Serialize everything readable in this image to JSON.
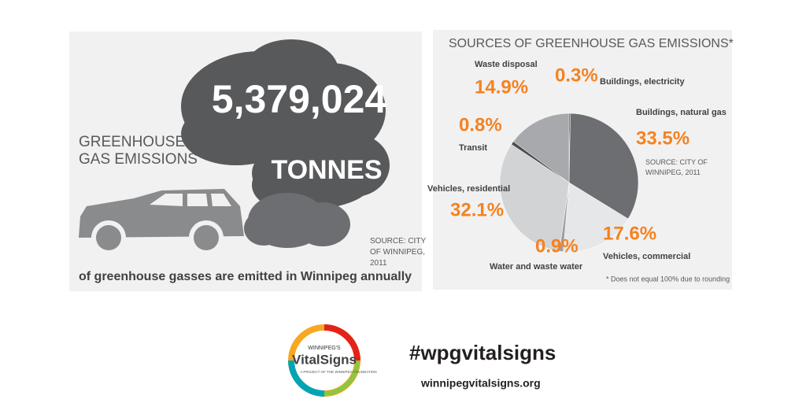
{
  "infographic": {
    "heading": "GREENHOUSE GAS EMISSIONS",
    "total": "5,379,024",
    "unit": "TONNES",
    "caption": "of greenhouse gasses are emitted in Winnipeg annually",
    "source": "SOURCE: CITY OF WINNIPEG, 2011"
  },
  "chart_data": {
    "type": "pie",
    "title": "SOURCES OF GREENHOUSE GAS EMISSIONS*",
    "categories": [
      "Buildings, electricity",
      "Buildings, natural gas",
      "Vehicles, commercial",
      "Water and waste water",
      "Vehicles, residential",
      "Transit",
      "Waste disposal"
    ],
    "values": [
      0.3,
      33.5,
      17.6,
      0.9,
      32.1,
      0.8,
      14.9
    ],
    "value_labels": [
      "0.3%",
      "33.5%",
      "17.6%",
      "0.9%",
      "32.1%",
      "0.8%",
      "14.9%"
    ],
    "colors": [
      "#3a3a3c",
      "#6d6e71",
      "#e6e7e8",
      "#9d9fa2",
      "#d1d3d4",
      "#4d4d4f",
      "#a7a9ac"
    ],
    "label_color": "#f58220",
    "source": "SOURCE: CITY OF WINNIPEG, 2011",
    "note": "* Does not equal 100% due to rounding"
  },
  "footer": {
    "logo_top": "WINNIPEG'S",
    "logo_main": "VitalSigns",
    "logo_sub": "A PROJECT OF THE WINNIPEG FOUNDATION",
    "hashtag": "#wpgvitalsigns",
    "url": "winnipegvitalsigns.org"
  }
}
